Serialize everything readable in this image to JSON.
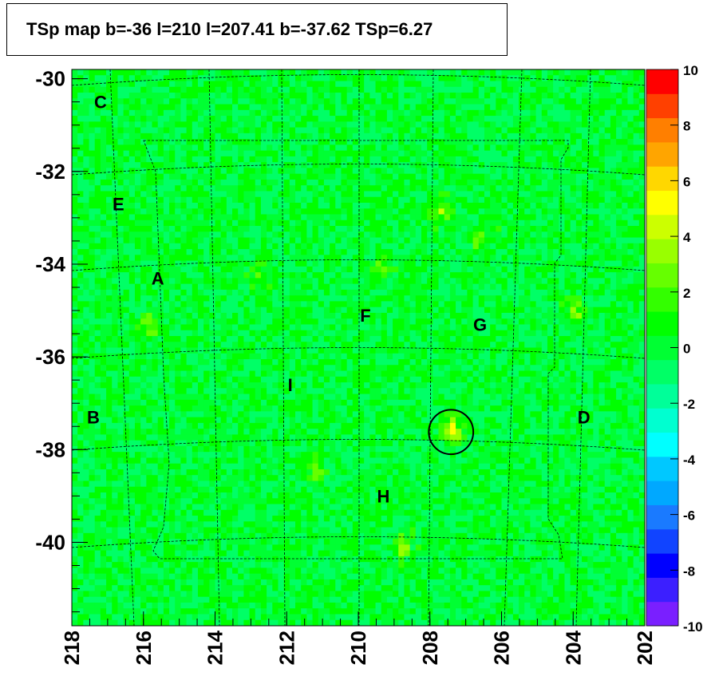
{
  "chart_data": {
    "type": "heatmap",
    "title": "TSp map b=-36 l=210 l=207.41 b=-37.62 TSp=6.27",
    "x_axis": {
      "min": 202,
      "max": 218,
      "reversed": true,
      "tick_labels": [
        "218",
        "216",
        "214",
        "212",
        "210",
        "208",
        "206",
        "204",
        "202"
      ]
    },
    "y_axis": {
      "min": -41.8,
      "max": -29.8,
      "tick_labels": [
        "-30",
        "-32",
        "-34",
        "-36",
        "-38",
        "-40"
      ]
    },
    "colorbar": {
      "min": -10,
      "max": 10,
      "tick_labels": [
        "10",
        "8",
        "6",
        "4",
        "2",
        "0",
        "-2",
        "-4",
        "-6",
        "-8",
        "-10"
      ],
      "colors": [
        "#7a1fff",
        "#3c1fff",
        "#0000ff",
        "#1144ff",
        "#1a7aff",
        "#00a8ff",
        "#00c8ff",
        "#00ffff",
        "#00ffd0",
        "#00ff99",
        "#00ff66",
        "#00ff33",
        "#00ff00",
        "#33ff00",
        "#66ff00",
        "#99ff00",
        "#ccff00",
        "#ffff00",
        "#ffd700",
        "#ffa500",
        "#ff7f00",
        "#ff4000",
        "#ff0000"
      ]
    },
    "field_value_typical": 0,
    "hotspots": [
      {
        "l": 207.4,
        "b": -37.6,
        "value": 6.27
      },
      {
        "l": 207.7,
        "b": -32.8,
        "value": 4
      },
      {
        "l": 208.8,
        "b": -40.1,
        "value": 3.5
      },
      {
        "l": 215.8,
        "b": -35.3,
        "value": 3.5
      },
      {
        "l": 211.2,
        "b": -38.5,
        "value": 2.5
      },
      {
        "l": 203.9,
        "b": -35.0,
        "value": 3
      },
      {
        "l": 209.3,
        "b": -34.0,
        "value": 2.5
      },
      {
        "l": 212.7,
        "b": -34.3,
        "value": 2.5
      },
      {
        "l": 206.6,
        "b": -33.5,
        "value": 3
      }
    ],
    "circle": {
      "l": 207.41,
      "b": -37.62,
      "radius_deg": 0.48
    },
    "region_labels": [
      {
        "text": "C",
        "l": 217.2,
        "b": -30.5
      },
      {
        "text": "E",
        "l": 216.7,
        "b": -32.7
      },
      {
        "text": "A",
        "l": 215.6,
        "b": -34.3
      },
      {
        "text": "F",
        "l": 209.8,
        "b": -35.1
      },
      {
        "text": "G",
        "l": 206.6,
        "b": -35.3
      },
      {
        "text": "I",
        "l": 211.9,
        "b": -36.6
      },
      {
        "text": "B",
        "l": 217.4,
        "b": -37.3
      },
      {
        "text": "D",
        "l": 203.7,
        "b": -37.3
      },
      {
        "text": "H",
        "l": 209.3,
        "b": -39.0
      }
    ]
  }
}
